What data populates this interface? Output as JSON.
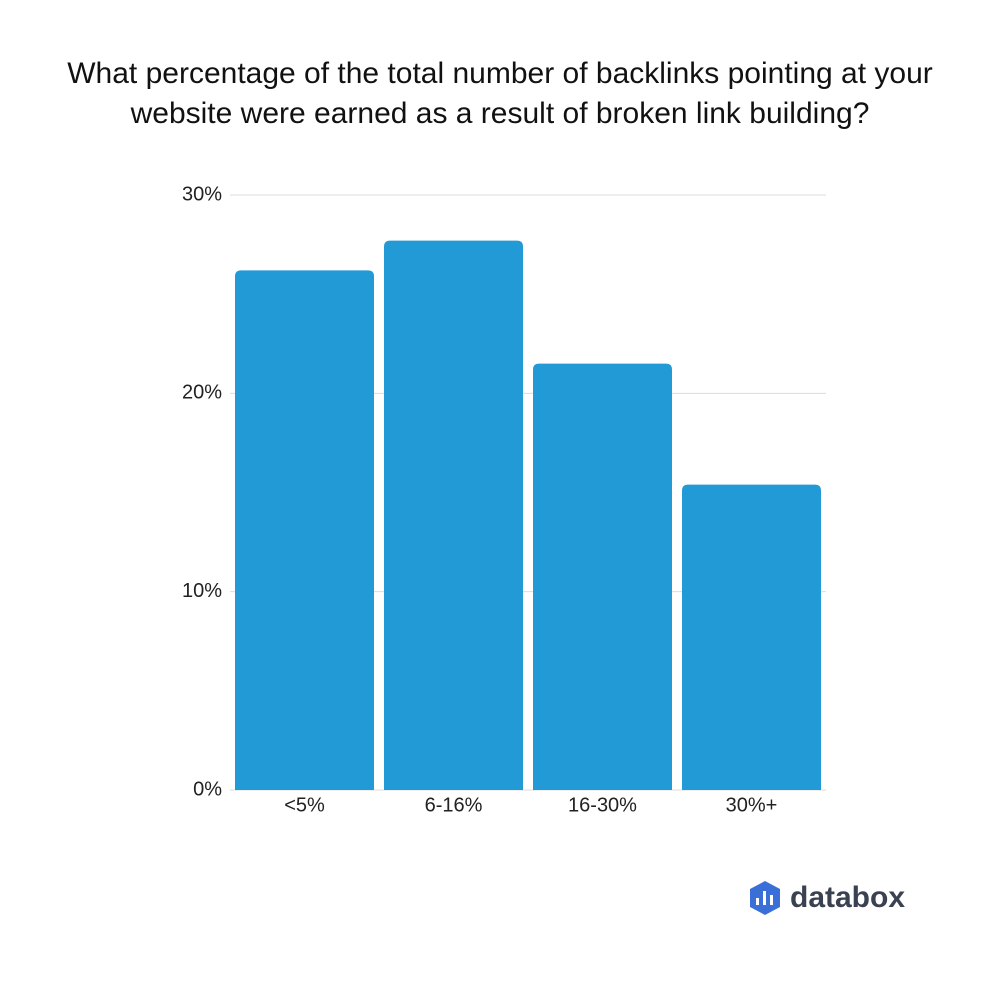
{
  "chart_data": {
    "type": "bar",
    "title": "What percentage of the total number of backlinks pointing at your website were earned as a result of broken link building?",
    "categories": [
      "<5%",
      "6-16%",
      "16-30%",
      "30%+"
    ],
    "values": [
      26.2,
      27.7,
      21.5,
      15.4
    ],
    "color": "#229ad6",
    "ylim": [
      0,
      30
    ],
    "yticks": [
      {
        "value": 0,
        "label": "0%"
      },
      {
        "value": 10,
        "label": "10%"
      },
      {
        "value": 20,
        "label": "20%"
      },
      {
        "value": 30,
        "label": "30%"
      }
    ],
    "grid": true
  },
  "logo": "databox"
}
